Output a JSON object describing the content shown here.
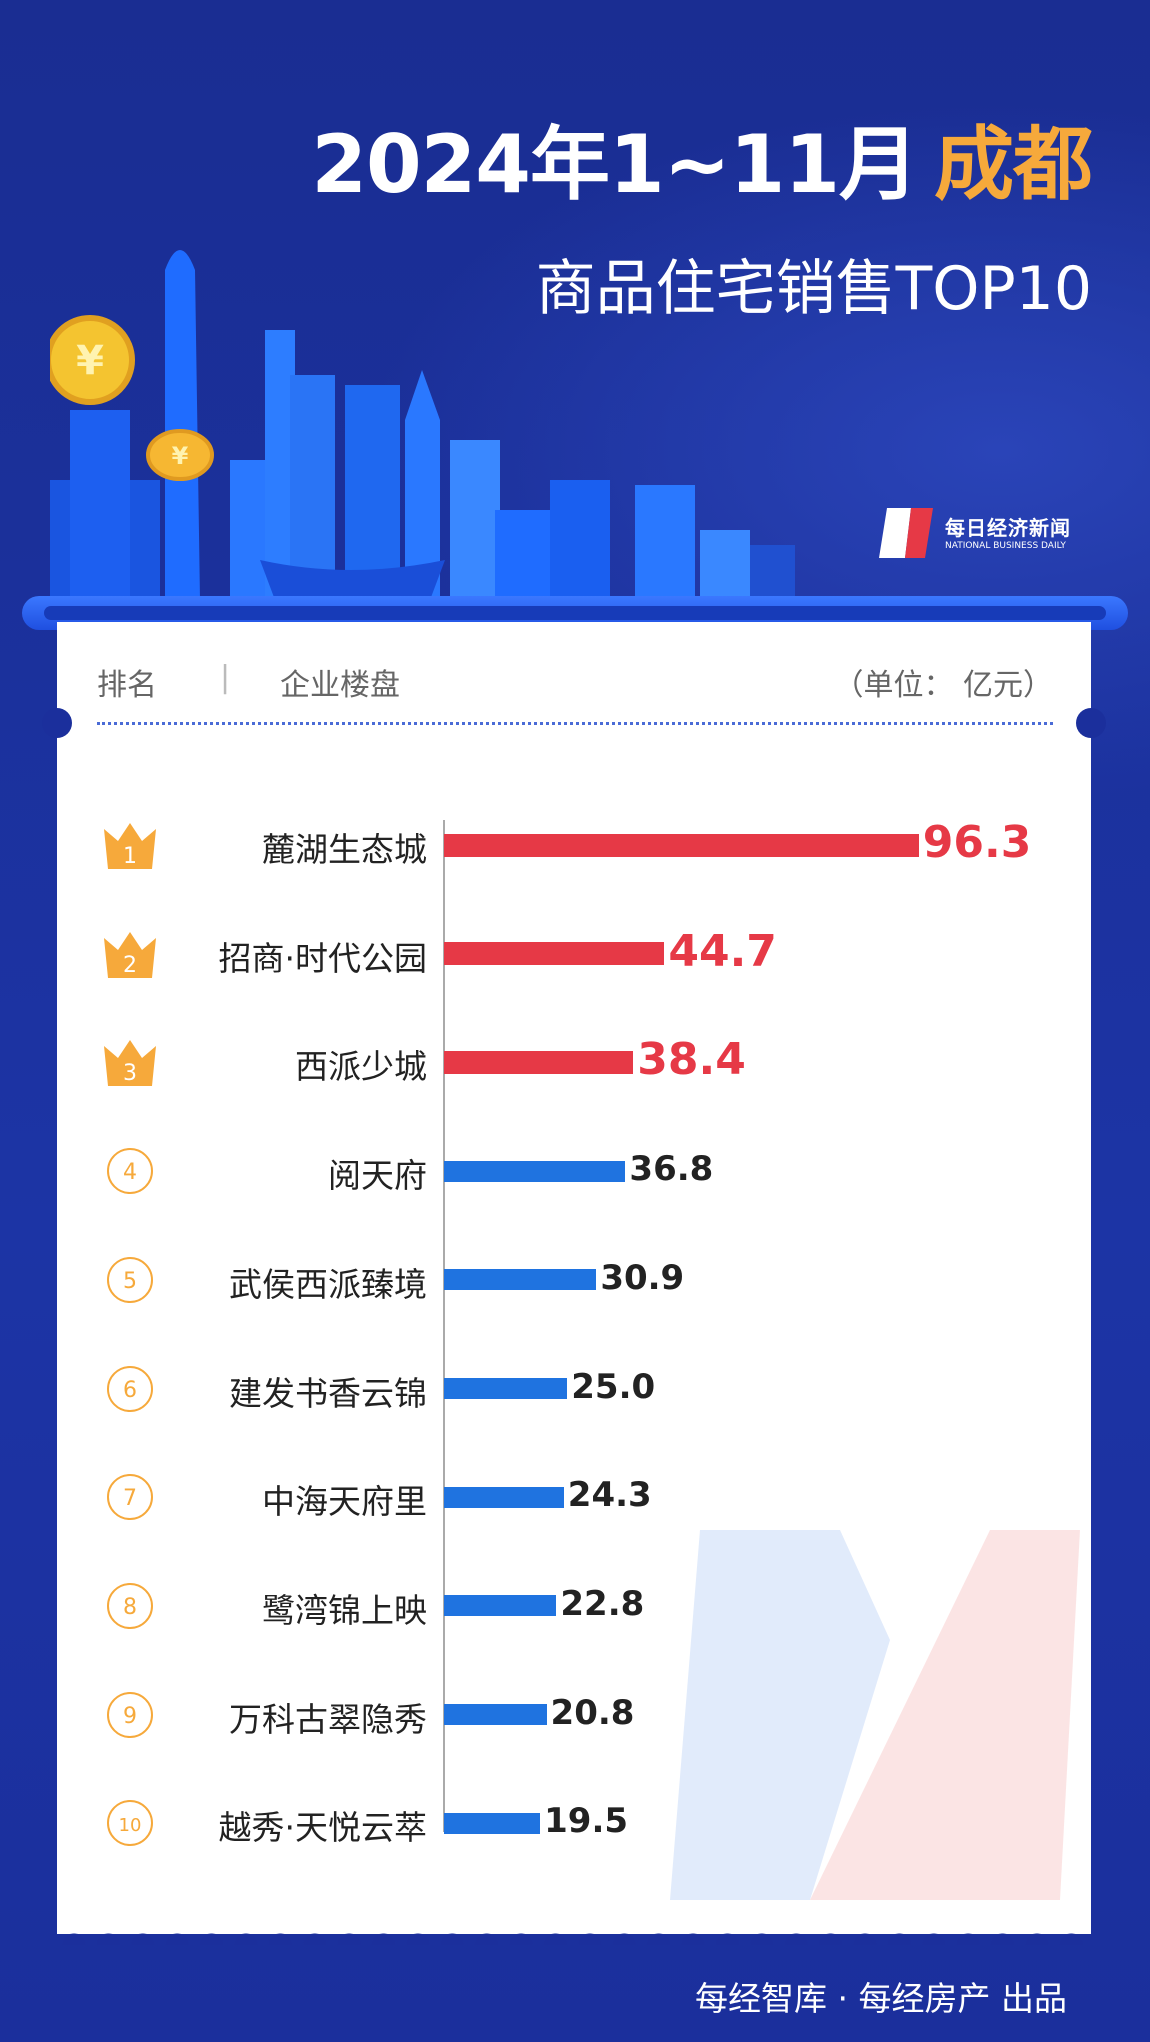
{
  "title": {
    "line1": "2024年1~11月",
    "city": "成都",
    "line2": "商品住宅销售TOP10"
  },
  "logo": {
    "cn": "每日经济新闻",
    "en": "NATIONAL BUSINESS DAILY"
  },
  "table_header": {
    "rank": "排名",
    "divider": "|",
    "project": "企业楼盘",
    "unit": "（单位： 亿元）"
  },
  "footer": "每经智库 · 每经房产 出品",
  "colors": {
    "top3": "#e63946",
    "others": "#1f73e0",
    "crown": "#f6a93b",
    "background": "#1b2f9c"
  },
  "chart_data": {
    "type": "bar",
    "orientation": "horizontal",
    "unit": "亿元",
    "categories": [
      "麓湖生态城",
      "招商·时代公园",
      "西派少城",
      "阅天府",
      "武侯西派臻境",
      "建发书香云锦",
      "中海天府里",
      "鹭湾锦上映",
      "万科古翠隐秀",
      "越秀·天悦云萃"
    ],
    "ranks": [
      "1",
      "2",
      "3",
      "4",
      "5",
      "6",
      "7",
      "8",
      "9",
      "10"
    ],
    "values": [
      96.3,
      44.7,
      38.4,
      36.8,
      30.9,
      25.0,
      24.3,
      22.8,
      20.8,
      19.5
    ],
    "value_labels": [
      "96.3",
      "44.7",
      "38.4",
      "36.8",
      "30.9",
      "25.0",
      "24.3",
      "22.8",
      "20.8",
      "19.5"
    ]
  }
}
